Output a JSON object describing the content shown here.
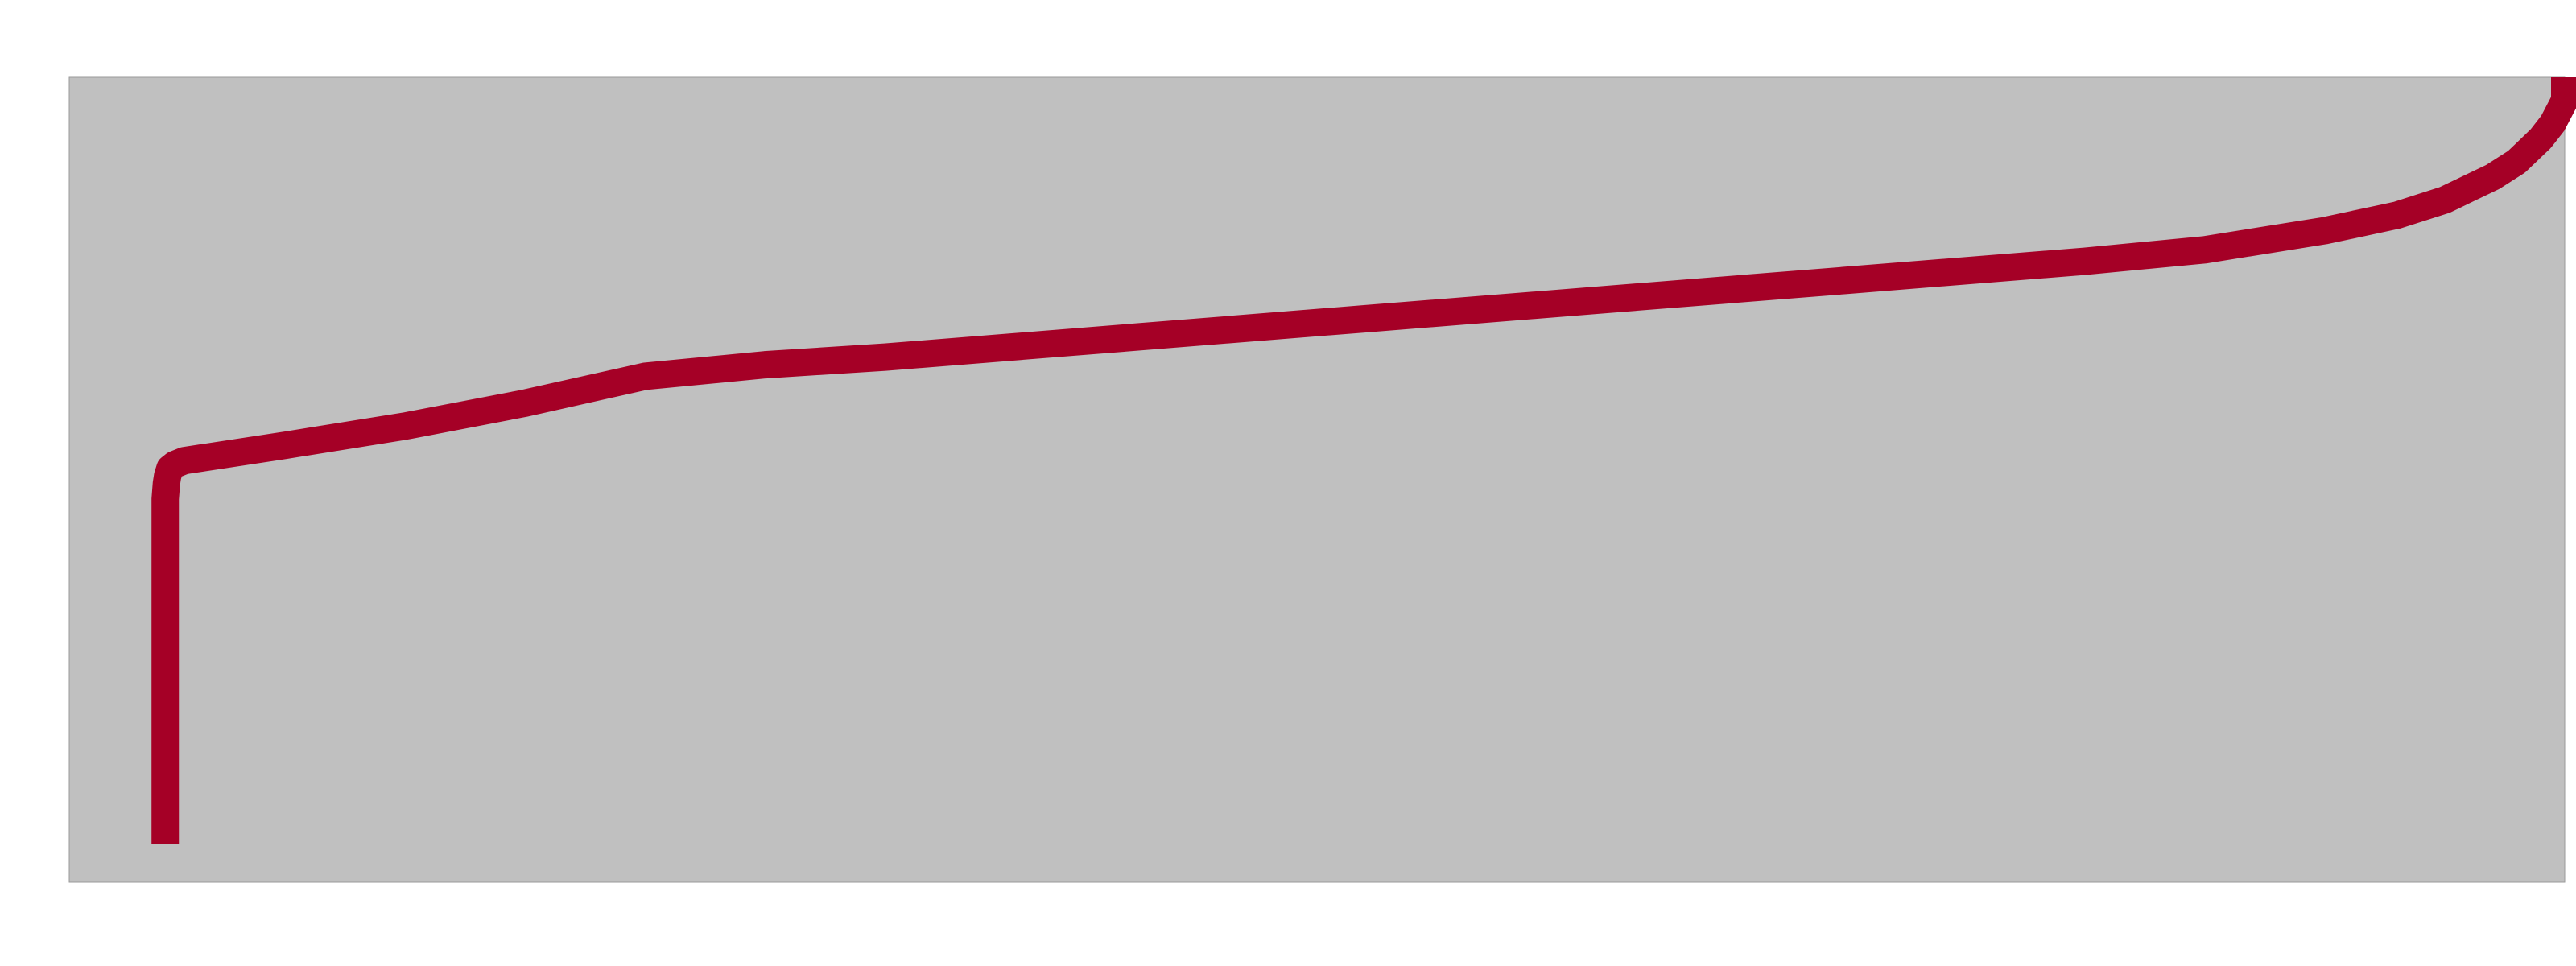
{
  "colors": {
    "page_background": "#ffffff",
    "plot_background": "#c0c0c0",
    "plot_border": "#9a9a9a",
    "line": "#a50026"
  },
  "chart_data": {
    "type": "line",
    "grid": false,
    "legend": "none",
    "xlim": [
      -0.04,
      1.0
    ],
    "ylim": [
      -0.05,
      1.0
    ],
    "series": [
      {
        "color": "#a50026",
        "x": [
          0.0,
          0.0,
          0.0005,
          0.001,
          0.002,
          0.004,
          0.008,
          0.05,
          0.1,
          0.15,
          0.2,
          0.25,
          0.3,
          0.4,
          0.5,
          0.6,
          0.7,
          0.8,
          0.85,
          0.9,
          0.93,
          0.95,
          0.96,
          0.97,
          0.975,
          0.98,
          0.985,
          0.99,
          0.995,
          1.0,
          1.0
        ],
        "y": [
          0.0,
          0.45,
          0.47,
          0.48,
          0.49,
          0.495,
          0.5,
          0.52,
          0.545,
          0.575,
          0.61,
          0.625,
          0.635,
          0.66,
          0.685,
          0.71,
          0.735,
          0.76,
          0.775,
          0.8,
          0.82,
          0.84,
          0.855,
          0.87,
          0.88,
          0.89,
          0.905,
          0.92,
          0.94,
          0.97,
          1.0
        ]
      }
    ]
  }
}
